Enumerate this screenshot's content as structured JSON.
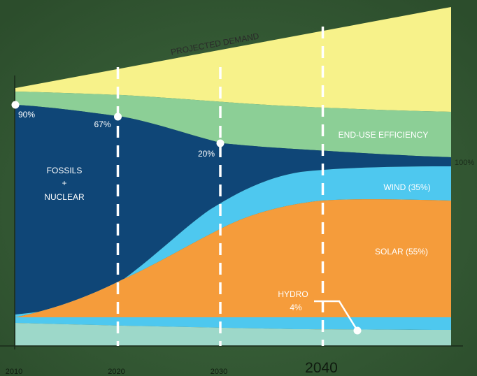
{
  "chart_data": {
    "type": "area",
    "x": [
      2010,
      2020,
      2030,
      2040
    ],
    "x_tick_labels": [
      "2010",
      "2020",
      "2030",
      "2040"
    ],
    "series": [
      {
        "name": "PROJECTED DEMAND",
        "color": "#f7f28a"
      },
      {
        "name": "END-USE EFFICIENCY",
        "color": "#8ccf96"
      },
      {
        "name": "FOSSILS + NUCLEAR",
        "color": "#0f4677"
      },
      {
        "name": "WIND (35%)",
        "color": "#4ec8ef"
      },
      {
        "name": "SOLAR (55%)",
        "color": "#f59c3b"
      },
      {
        "name": "HYDRO",
        "color": "#9dd8c9"
      }
    ],
    "fossil_share_points": [
      {
        "x": 2010,
        "label": "90%"
      },
      {
        "x": 2020,
        "label": "67%"
      },
      {
        "x": 2030,
        "label": "20%"
      }
    ],
    "labels": {
      "demand": "PROJECTED DEMAND",
      "efficiency": "END-USE EFFICIENCY",
      "fossils_line1": "FOSSILS",
      "fossils_line2": "+",
      "fossils_line3": "NUCLEAR",
      "wind": "WIND (35%)",
      "solar": "SOLAR (55%)",
      "hydro_line1": "HYDRO",
      "hydro_line2": "4%",
      "renewables_end": "100%"
    },
    "colors": {
      "background": "#355a35",
      "dashed_line": "#ffffff",
      "axis": "#1a2a1a",
      "tick_label": "#0f1a0f"
    },
    "grid": false,
    "legend": "none"
  }
}
